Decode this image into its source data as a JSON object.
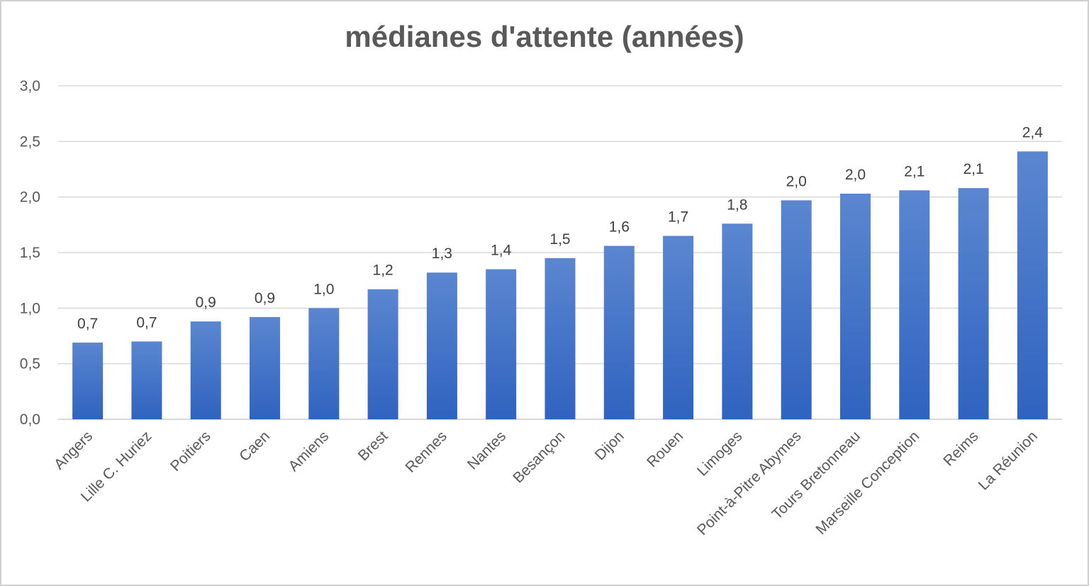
{
  "chart_data": {
    "type": "bar",
    "title": "médianes d'attente (années)",
    "xlabel": "",
    "ylabel": "",
    "ylim": [
      0,
      3
    ],
    "grid": true,
    "legend": "none",
    "bar_color": "#4472c4",
    "yticks": [
      "0,0",
      "0,5",
      "1,0",
      "1,5",
      "2,0",
      "2,5",
      "3,0"
    ],
    "categories": [
      "Angers",
      "Lille C. Huriez",
      "Poitiers",
      "Caen",
      "Amiens",
      "Brest",
      "Rennes",
      "Nantes",
      "Besançon",
      "Dijon",
      "Rouen",
      "Limoges",
      "Point-à-Pitre Abymes",
      "Tours Bretonneau",
      "Marseille Conception",
      "Reims",
      "La Réunion"
    ],
    "values": [
      0.69,
      0.7,
      0.88,
      0.92,
      1.0,
      1.17,
      1.32,
      1.35,
      1.45,
      1.56,
      1.65,
      1.76,
      1.97,
      2.03,
      2.06,
      2.08,
      2.41
    ],
    "data_labels": [
      "0,7",
      "0,7",
      "0,9",
      "0,9",
      "1,0",
      "1,2",
      "1,3",
      "1,4",
      "1,5",
      "1,6",
      "1,7",
      "1,8",
      "2,0",
      "2,0",
      "2,1",
      "2,1",
      "2,4"
    ]
  }
}
